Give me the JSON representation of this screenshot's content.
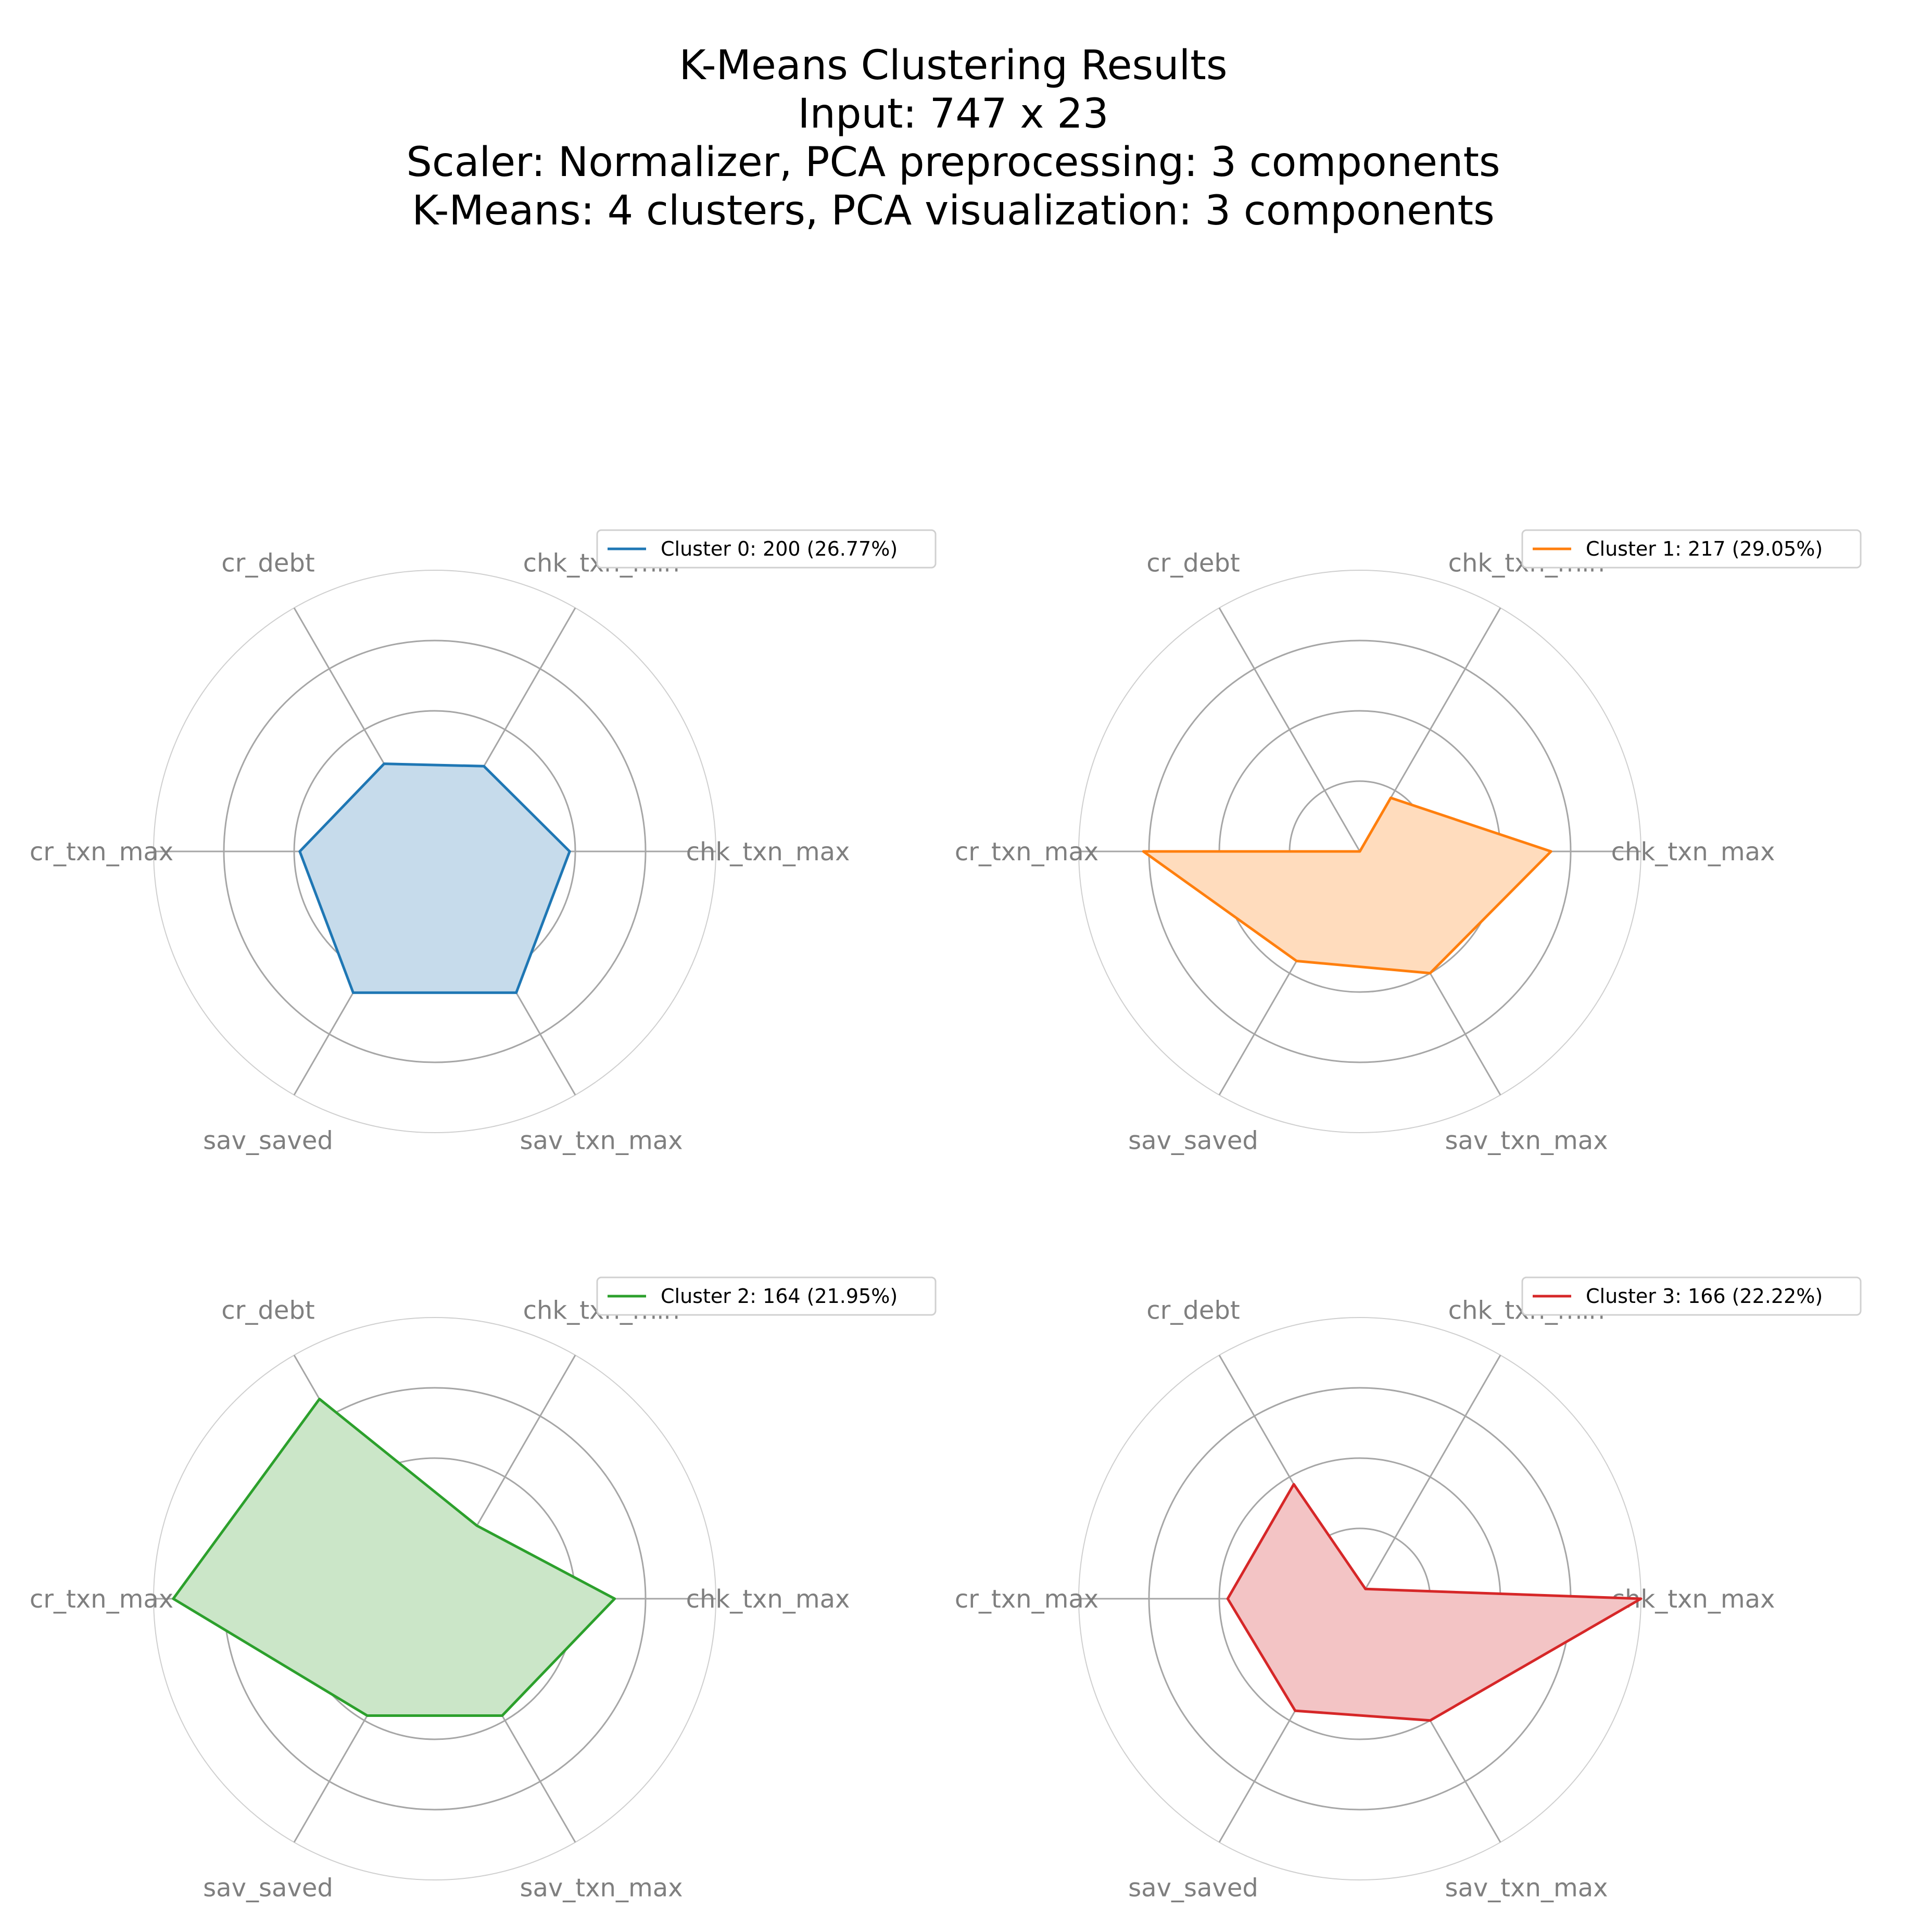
{
  "figure": {
    "title_lines": [
      "K-Means Clustering Results",
      "Input: 747 x 23",
      "Scaler: Normalizer, PCA preprocessing: 3 components",
      "K-Means: 4 clusters, PCA visualization: 3 components"
    ]
  },
  "chart_data": [
    {
      "type": "radar",
      "axes": [
        "chk_txn_max",
        "chk_txn_min",
        "cr_debt",
        "cr_txn_max",
        "sav_saved",
        "sav_txn_max"
      ],
      "rlim": [
        0,
        1
      ],
      "radial_grid": [
        0.25,
        0.5,
        0.75,
        1.0
      ],
      "grid": true,
      "legend_position": "top-right",
      "series": [
        {
          "name": "Cluster 0: 200 (26.77%)",
          "values": [
            0.48,
            0.35,
            0.36,
            0.48,
            0.58,
            0.58
          ]
        }
      ],
      "color": "#1f77b4",
      "fill": "#c6dbeb"
    },
    {
      "type": "radar",
      "axes": [
        "chk_txn_max",
        "chk_txn_min",
        "cr_debt",
        "cr_txn_max",
        "sav_saved",
        "sav_txn_max"
      ],
      "rlim": [
        0,
        1
      ],
      "radial_grid": [
        0.25,
        0.5,
        0.75,
        1.0
      ],
      "grid": true,
      "legend_position": "top-right",
      "series": [
        {
          "name": "Cluster 1: 217 (29.05%)",
          "values": [
            0.68,
            0.22,
            0.0,
            0.77,
            0.45,
            0.5
          ]
        }
      ],
      "color": "#ff7f0e",
      "fill": "#ffdcbd"
    },
    {
      "type": "radar",
      "axes": [
        "chk_txn_max",
        "chk_txn_min",
        "cr_debt",
        "cr_txn_max",
        "sav_saved",
        "sav_txn_max"
      ],
      "rlim": [
        0,
        1
      ],
      "radial_grid": [
        0.25,
        0.5,
        0.75,
        1.0
      ],
      "grid": true,
      "legend_position": "top-right",
      "series": [
        {
          "name": "Cluster 2: 164 (21.95%)",
          "values": [
            0.64,
            0.3,
            0.82,
            0.93,
            0.48,
            0.48
          ]
        }
      ],
      "color": "#2ca02c",
      "fill": "#cbe6c8"
    },
    {
      "type": "radar",
      "axes": [
        "chk_txn_max",
        "chk_txn_min",
        "cr_debt",
        "cr_txn_max",
        "sav_saved",
        "sav_txn_max"
      ],
      "rlim": [
        0,
        1
      ],
      "radial_grid": [
        0.25,
        0.5,
        0.75,
        1.0
      ],
      "grid": true,
      "legend_position": "top-right",
      "series": [
        {
          "name": "Cluster 3: 166 (22.22%)",
          "values": [
            1.0,
            0.04,
            0.47,
            0.47,
            0.46,
            0.5
          ]
        }
      ],
      "color": "#d62728",
      "fill": "#f3c4c5"
    }
  ]
}
